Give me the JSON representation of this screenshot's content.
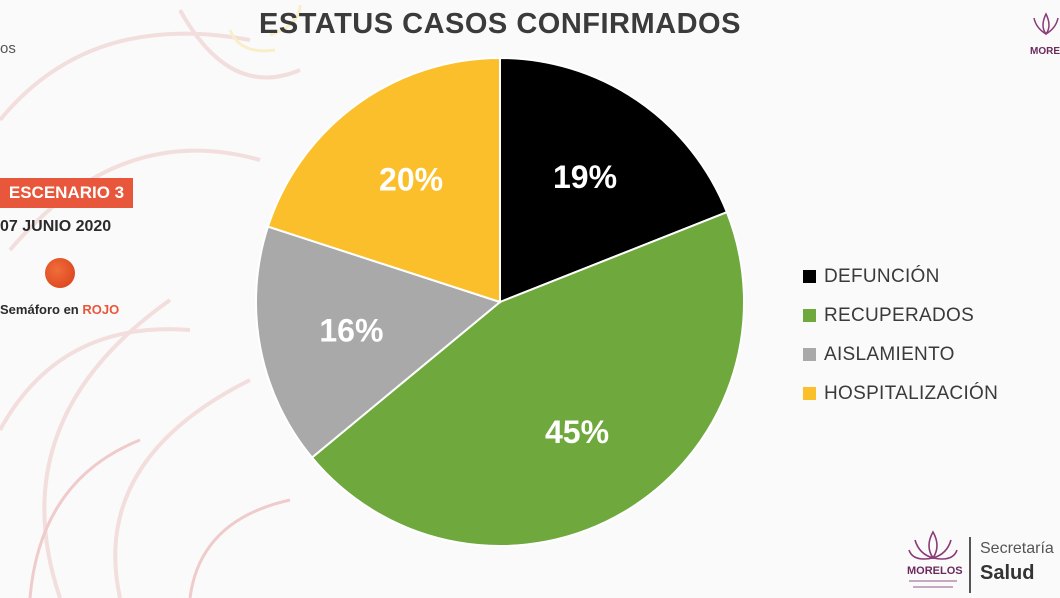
{
  "slide": {
    "title": "ESTATUS CASOS CONFIRMADOS",
    "cut_text": "os",
    "scenario_label": "ESCENARIO 3",
    "date_label": "07 JUNIO 2020",
    "semaforo_prefix": "Semáforo en ",
    "semaforo_status": "ROJO"
  },
  "footer": {
    "line1": "Secretaría",
    "line2": "Salud",
    "logo_text": "MORELOS"
  },
  "colors": {
    "scenario_bg": "#e8573b",
    "semaforo_light": "#e0461f"
  },
  "chart_data": {
    "type": "pie",
    "title": "ESTATUS CASOS CONFIRMADOS",
    "slices": [
      {
        "label": "DEFUNCIÓN",
        "value": 19,
        "display": "19%",
        "color": "#000000"
      },
      {
        "label": "RECUPERADOS",
        "value": 45,
        "display": "45%",
        "color": "#6fa83d"
      },
      {
        "label": "AISLAMIENTO",
        "value": 16,
        "display": "16%",
        "color": "#a9a9a9"
      },
      {
        "label": "HOSPITALIZACIÓN",
        "value": 20,
        "display": "20%",
        "color": "#fbbf2c"
      }
    ],
    "legend_position": "right",
    "start": "top-center, clockwise"
  }
}
